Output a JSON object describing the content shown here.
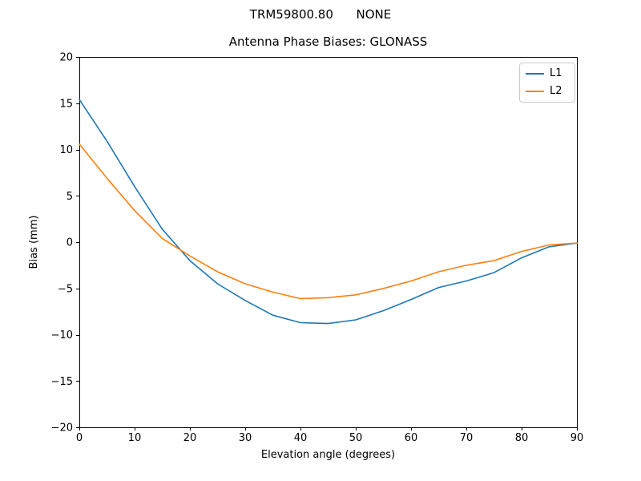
{
  "chart_data": {
    "type": "line",
    "suptitle": "TRM59800.80      NONE",
    "title": "Antenna Phase Biases: GLONASS",
    "xlabel": "Elevation angle (degrees)",
    "ylabel": "Bias (mm)",
    "xlim": [
      0,
      90
    ],
    "ylim": [
      -20,
      20
    ],
    "xtick_values": [
      0,
      10,
      20,
      30,
      40,
      50,
      60,
      70,
      80,
      90
    ],
    "xtick_labels": [
      "0",
      "10",
      "20",
      "30",
      "40",
      "50",
      "60",
      "70",
      "80",
      "90"
    ],
    "ytick_values": [
      -20,
      -15,
      -10,
      -5,
      0,
      5,
      10,
      15,
      20
    ],
    "ytick_labels": [
      "−20",
      "−15",
      "−10",
      "−5",
      "0",
      "5",
      "10",
      "15",
      "20"
    ],
    "grid": false,
    "legend_position": "upper right",
    "x": [
      0,
      5,
      10,
      15,
      20,
      25,
      30,
      35,
      40,
      45,
      50,
      55,
      60,
      65,
      70,
      75,
      80,
      85,
      90
    ],
    "series": [
      {
        "name": "L1",
        "color": "#1f77b4",
        "values": [
          15.4,
          10.9,
          6.0,
          1.4,
          -2.0,
          -4.5,
          -6.3,
          -7.9,
          -8.7,
          -8.8,
          -8.4,
          -7.4,
          -6.2,
          -4.9,
          -4.2,
          -3.3,
          -1.7,
          -0.5,
          -0.1
        ]
      },
      {
        "name": "L2",
        "color": "#ff7f0e",
        "values": [
          10.6,
          6.9,
          3.4,
          0.4,
          -1.5,
          -3.2,
          -4.5,
          -5.4,
          -6.1,
          -6.0,
          -5.7,
          -5.0,
          -4.2,
          -3.2,
          -2.5,
          -2.0,
          -1.0,
          -0.3,
          -0.1
        ]
      }
    ],
    "colors": {
      "axis": "#000000",
      "legend_border": "#cccccc",
      "background": "#ffffff"
    }
  }
}
